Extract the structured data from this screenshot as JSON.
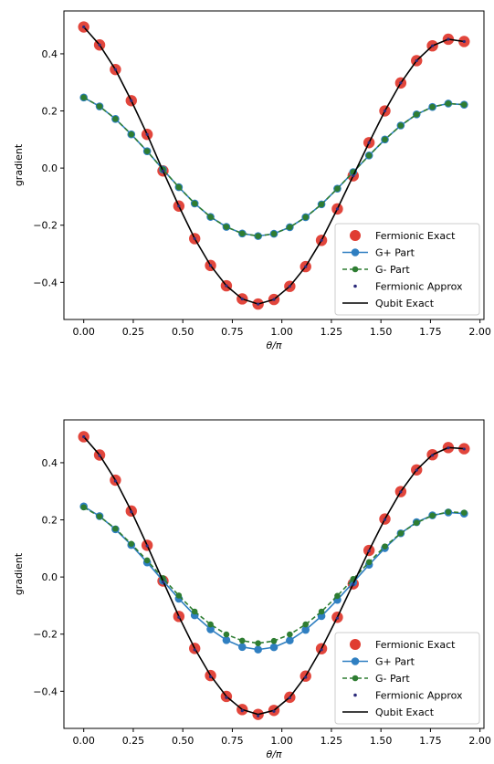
{
  "chart_data": [
    {
      "type": "line",
      "xlabel": "θ/π",
      "ylabel": "gradient",
      "xlim": [
        -0.1,
        2.02
      ],
      "ylim": [
        -0.53,
        0.55
      ],
      "xticks": [
        0.0,
        0.25,
        0.5,
        0.75,
        1.0,
        1.25,
        1.5,
        1.75,
        2.0
      ],
      "xtick_labels": [
        "0.00",
        "0.25",
        "0.50",
        "0.75",
        "1.00",
        "1.25",
        "1.50",
        "1.75",
        "2.00"
      ],
      "yticks": [
        -0.4,
        -0.2,
        0.0,
        0.2,
        0.4
      ],
      "ytick_labels": [
        "−0.4",
        "−0.2",
        "0.0",
        "0.2",
        "0.4"
      ],
      "legend_position": "lower-right",
      "x": [
        0.0,
        0.08,
        0.16,
        0.24,
        0.32,
        0.4,
        0.48,
        0.56,
        0.64,
        0.72,
        0.8,
        0.88,
        0.96,
        1.04,
        1.12,
        1.2,
        1.28,
        1.36,
        1.44,
        1.52,
        1.6,
        1.68,
        1.76,
        1.84,
        1.92
      ],
      "series": [
        {
          "name": "Fermionic Exact",
          "style": "big-dot",
          "color": "#e03c31",
          "values": [
            0.494,
            0.431,
            0.345,
            0.236,
            0.118,
            -0.01,
            -0.133,
            -0.247,
            -0.341,
            -0.412,
            -0.458,
            -0.476,
            -0.46,
            -0.414,
            -0.345,
            -0.253,
            -0.143,
            -0.027,
            0.089,
            0.2,
            0.298,
            0.376,
            0.428,
            0.451,
            0.443
          ]
        },
        {
          "name": "G+ Part",
          "style": "solid-dot",
          "color": "#2f7fc1",
          "values": [
            0.247,
            0.216,
            0.172,
            0.118,
            0.059,
            -0.005,
            -0.067,
            -0.124,
            -0.171,
            -0.206,
            -0.229,
            -0.238,
            -0.23,
            -0.207,
            -0.172,
            -0.127,
            -0.072,
            -0.014,
            0.044,
            0.1,
            0.149,
            0.188,
            0.214,
            0.226,
            0.222
          ]
        },
        {
          "name": "G- Part",
          "style": "dashed-dot",
          "color": "#2e7d32",
          "values": [
            0.247,
            0.216,
            0.172,
            0.118,
            0.059,
            -0.005,
            -0.067,
            -0.124,
            -0.171,
            -0.206,
            -0.229,
            -0.238,
            -0.23,
            -0.207,
            -0.172,
            -0.127,
            -0.072,
            -0.014,
            0.044,
            0.1,
            0.149,
            0.188,
            0.214,
            0.226,
            0.222
          ]
        },
        {
          "name": "Fermionic Approx",
          "style": "tiny-dot",
          "color": "#2b2a7a",
          "values": [
            0.494,
            0.431,
            0.345,
            0.236,
            0.118,
            -0.01,
            -0.133,
            -0.247,
            -0.341,
            -0.412,
            -0.458,
            -0.476,
            -0.46,
            -0.414,
            -0.345,
            -0.253,
            -0.143,
            -0.027,
            0.089,
            0.2,
            0.298,
            0.376,
            0.428,
            0.451,
            0.443
          ]
        },
        {
          "name": "Qubit Exact",
          "style": "line",
          "color": "#000000",
          "values": [
            0.494,
            0.431,
            0.345,
            0.236,
            0.118,
            -0.01,
            -0.133,
            -0.247,
            -0.341,
            -0.412,
            -0.458,
            -0.476,
            -0.46,
            -0.414,
            -0.345,
            -0.253,
            -0.143,
            -0.027,
            0.089,
            0.2,
            0.298,
            0.376,
            0.428,
            0.451,
            0.443
          ]
        }
      ]
    },
    {
      "type": "line",
      "xlabel": "θ/π",
      "ylabel": "gradient",
      "xlim": [
        -0.1,
        2.02
      ],
      "ylim": [
        -0.53,
        0.55
      ],
      "xticks": [
        0.0,
        0.25,
        0.5,
        0.75,
        1.0,
        1.25,
        1.5,
        1.75,
        2.0
      ],
      "xtick_labels": [
        "0.00",
        "0.25",
        "0.50",
        "0.75",
        "1.00",
        "1.25",
        "1.50",
        "1.75",
        "2.00"
      ],
      "yticks": [
        -0.4,
        -0.2,
        0.0,
        0.2,
        0.4
      ],
      "ytick_labels": [
        "−0.4",
        "−0.2",
        "0.0",
        "0.2",
        "0.4"
      ],
      "legend_position": "lower-right",
      "x": [
        0.0,
        0.08,
        0.16,
        0.24,
        0.32,
        0.4,
        0.48,
        0.56,
        0.64,
        0.72,
        0.8,
        0.88,
        0.96,
        1.04,
        1.12,
        1.2,
        1.28,
        1.36,
        1.44,
        1.52,
        1.6,
        1.68,
        1.76,
        1.84,
        1.92
      ],
      "series": [
        {
          "name": "Fermionic Exact",
          "style": "big-dot",
          "color": "#e03c31",
          "values": [
            0.491,
            0.427,
            0.339,
            0.231,
            0.111,
            -0.014,
            -0.138,
            -0.25,
            -0.345,
            -0.418,
            -0.464,
            -0.481,
            -0.467,
            -0.421,
            -0.347,
            -0.251,
            -0.141,
            -0.024,
            0.093,
            0.203,
            0.299,
            0.375,
            0.428,
            0.453,
            0.449
          ]
        },
        {
          "name": "G+ Part",
          "style": "solid-dot",
          "color": "#2f7fc1",
          "values": [
            0.247,
            0.213,
            0.167,
            0.112,
            0.051,
            -0.013,
            -0.076,
            -0.134,
            -0.183,
            -0.221,
            -0.245,
            -0.254,
            -0.246,
            -0.222,
            -0.185,
            -0.137,
            -0.08,
            -0.019,
            0.043,
            0.101,
            0.153,
            0.192,
            0.216,
            0.226,
            0.222
          ]
        },
        {
          "name": "G- Part",
          "style": "dashed-dot",
          "color": "#2e7d32",
          "values": [
            0.244,
            0.212,
            0.169,
            0.116,
            0.058,
            -0.004,
            -0.065,
            -0.121,
            -0.166,
            -0.201,
            -0.223,
            -0.232,
            -0.224,
            -0.201,
            -0.166,
            -0.121,
            -0.066,
            -0.007,
            0.052,
            0.107,
            0.153,
            0.19,
            0.215,
            0.228,
            0.225
          ]
        },
        {
          "name": "Fermionic Approx",
          "style": "tiny-dot",
          "color": "#2b2a7a",
          "values": [
            0.491,
            0.425,
            0.336,
            0.228,
            0.109,
            -0.017,
            -0.141,
            -0.255,
            -0.349,
            -0.422,
            -0.468,
            -0.486,
            -0.47,
            -0.423,
            -0.351,
            -0.255,
            -0.144,
            -0.026,
            0.091,
            0.201,
            0.298,
            0.374,
            0.426,
            0.452,
            0.448
          ]
        },
        {
          "name": "Qubit Exact",
          "style": "line",
          "color": "#000000",
          "values": [
            0.491,
            0.427,
            0.339,
            0.231,
            0.111,
            -0.014,
            -0.138,
            -0.25,
            -0.345,
            -0.418,
            -0.464,
            -0.481,
            -0.467,
            -0.421,
            -0.347,
            -0.251,
            -0.141,
            -0.024,
            0.093,
            0.203,
            0.299,
            0.375,
            0.428,
            0.453,
            0.449
          ]
        }
      ]
    }
  ]
}
